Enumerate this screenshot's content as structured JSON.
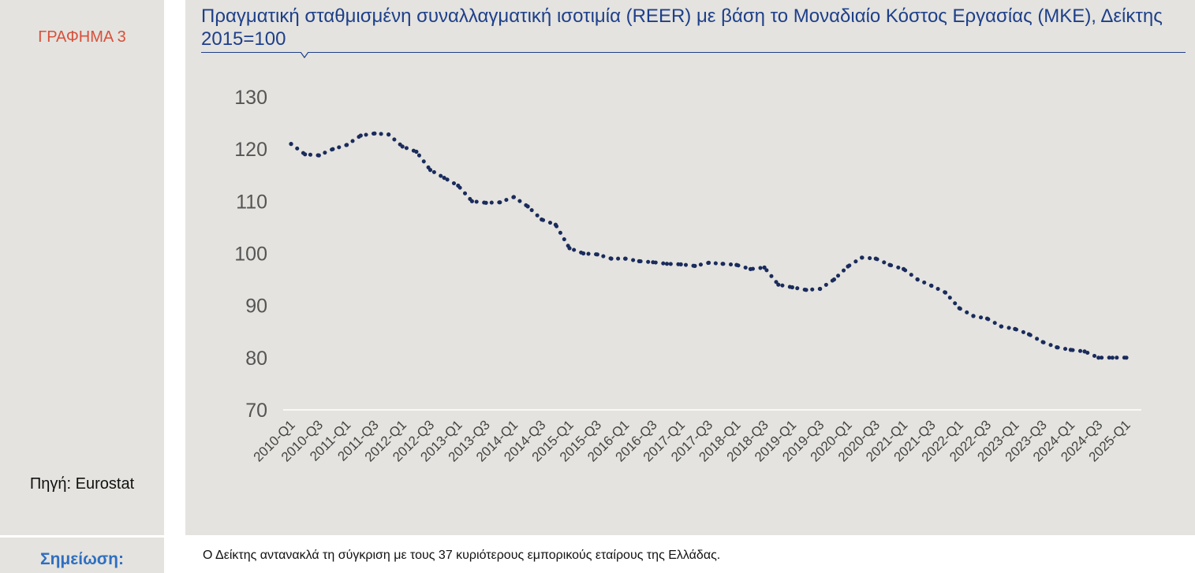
{
  "chart_label": "ΓΡΑΦΗΜΑ 3",
  "source": "Πηγή: Eurostat",
  "note_label": "Σημείωση:",
  "note_text": "Ο Δείκτης αντανακλά τη σύγκριση με τους 37 κυριότερους εμπορικούς εταίρους της Ελλάδας.",
  "colors": {
    "accent_red": "#d9503a",
    "title_blue": "#1e3f8a",
    "series_navy": "#1a2b5c",
    "note_blue": "#2f6fc0",
    "panel_bg": "#e4e3df"
  },
  "chart_data": {
    "type": "line",
    "title": "Πραγματική σταθμισμένη συναλλαγματική ισοτιμία (REER) με βάση το Μοναδιαίο Κόστος Εργασίας (ΜΚΕ), Δείκτης 2015=100",
    "xlabel": "",
    "ylabel": "",
    "ylim": [
      70,
      130
    ],
    "yticks": [
      70,
      80,
      90,
      100,
      110,
      120,
      130
    ],
    "grid": false,
    "line_style": "dotted",
    "x_tick_labels": [
      "2010-Q1",
      "2010-Q3",
      "2011-Q1",
      "2011-Q3",
      "2012-Q1",
      "2012-Q3",
      "2013-Q1",
      "2013-Q3",
      "2014-Q1",
      "2014-Q3",
      "2015-Q1",
      "2015-Q3",
      "2016-Q1",
      "2016-Q3",
      "2017-Q1",
      "2017-Q3",
      "2018-Q1",
      "2018-Q3",
      "2019-Q1",
      "2019-Q3",
      "2020-Q1",
      "2020-Q3",
      "2021-Q1",
      "2021-Q3",
      "2022-Q1",
      "2022-Q3",
      "2023-Q1",
      "2023-Q3",
      "2024-Q1",
      "2024-Q3",
      "2025-Q1"
    ],
    "x": [
      "2010-Q1",
      "2010-Q2",
      "2010-Q3",
      "2010-Q4",
      "2011-Q1",
      "2011-Q2",
      "2011-Q3",
      "2011-Q4",
      "2012-Q1",
      "2012-Q2",
      "2012-Q3",
      "2012-Q4",
      "2013-Q1",
      "2013-Q2",
      "2013-Q3",
      "2013-Q4",
      "2014-Q1",
      "2014-Q2",
      "2014-Q3",
      "2014-Q4",
      "2015-Q1",
      "2015-Q2",
      "2015-Q3",
      "2015-Q4",
      "2016-Q1",
      "2016-Q2",
      "2016-Q3",
      "2016-Q4",
      "2017-Q1",
      "2017-Q2",
      "2017-Q3",
      "2017-Q4",
      "2018-Q1",
      "2018-Q2",
      "2018-Q3",
      "2018-Q4",
      "2019-Q1",
      "2019-Q2",
      "2019-Q3",
      "2019-Q4",
      "2020-Q1",
      "2020-Q2",
      "2020-Q3",
      "2020-Q4",
      "2021-Q1",
      "2021-Q2",
      "2021-Q3",
      "2021-Q4",
      "2022-Q1",
      "2022-Q2",
      "2022-Q3",
      "2022-Q4",
      "2023-Q1",
      "2023-Q2",
      "2023-Q3",
      "2023-Q4",
      "2024-Q1",
      "2024-Q2",
      "2024-Q3",
      "2024-Q4",
      "2025-Q1"
    ],
    "series": [
      {
        "values": [
          121.0,
          119.0,
          118.8,
          120.0,
          120.8,
          122.6,
          123.0,
          122.8,
          120.5,
          119.5,
          116.0,
          114.5,
          113.0,
          110.0,
          109.7,
          109.8,
          110.8,
          109.0,
          106.5,
          105.5,
          101.0,
          100.0,
          99.8,
          99.0,
          99.0,
          98.5,
          98.3,
          98.0,
          97.9,
          97.6,
          98.2,
          98.0,
          97.8,
          97.0,
          97.3,
          94.0,
          93.5,
          93.0,
          93.2,
          95.0,
          97.5,
          99.2,
          99.0,
          97.8,
          97.0,
          95.0,
          93.8,
          92.5,
          89.5,
          88.0,
          87.5,
          86.0,
          85.5,
          84.5,
          83.0,
          82.0,
          81.5,
          81.2,
          80.0,
          80.0,
          80.0
        ]
      }
    ]
  }
}
